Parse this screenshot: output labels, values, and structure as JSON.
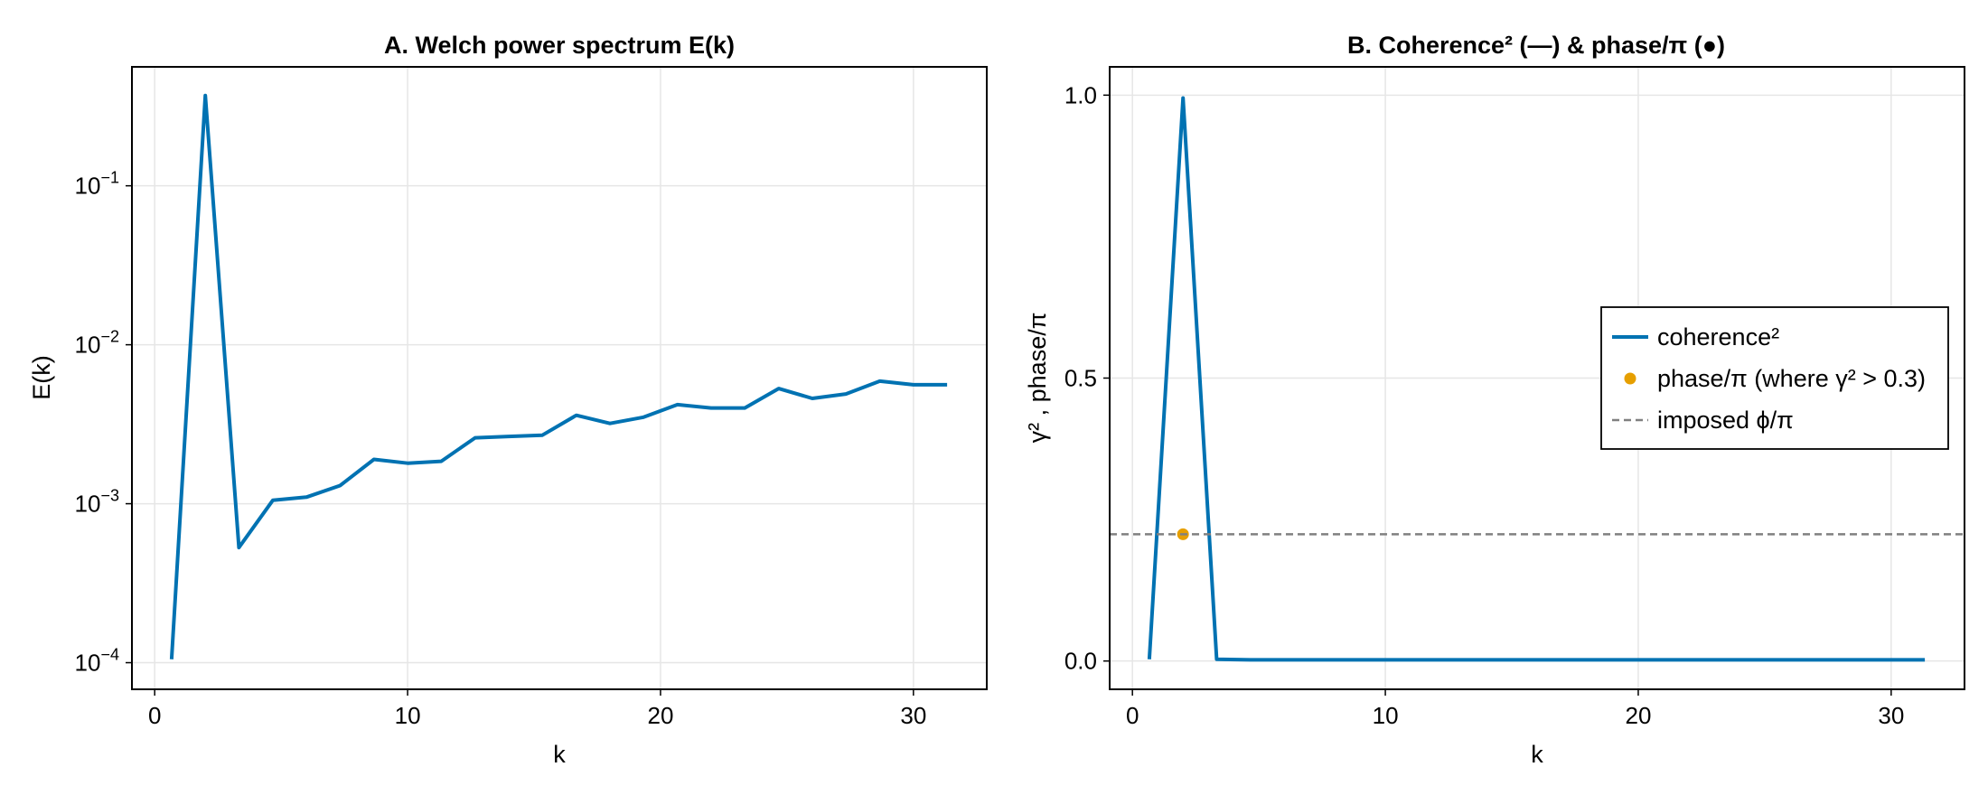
{
  "chart_data": [
    {
      "type": "line",
      "title": "A. Welch power spectrum E(k)",
      "xlabel": "k",
      "ylabel": "E(k)",
      "yscale": "log",
      "xlim": [
        -0.9,
        32.9
      ],
      "ylim": [
        6.8e-05,
        0.56
      ],
      "xticks": [
        0,
        10,
        20,
        30
      ],
      "yticks": [
        0.0001,
        0.001,
        0.01,
        0.1
      ],
      "ytick_labels": [
        {
          "base": "10",
          "exp": "−4"
        },
        {
          "base": "10",
          "exp": "−3"
        },
        {
          "base": "10",
          "exp": "−2"
        },
        {
          "base": "10",
          "exp": "−1"
        }
      ],
      "grid": true,
      "series": [
        {
          "color": "#0072b2",
          "x": [
            0.67,
            2.0,
            3.33,
            4.67,
            6.0,
            7.33,
            8.67,
            10.0,
            11.33,
            12.67,
            14.0,
            15.33,
            16.67,
            18.0,
            19.33,
            20.67,
            22.0,
            23.33,
            24.67,
            26.0,
            27.33,
            28.67,
            30.0,
            31.33
          ],
          "y": [
            0.000105,
            0.37,
            0.00053,
            0.00105,
            0.0011,
            0.0013,
            0.0019,
            0.0018,
            0.00185,
            0.0026,
            0.00265,
            0.0027,
            0.0036,
            0.0032,
            0.0035,
            0.0042,
            0.004,
            0.004,
            0.0053,
            0.0046,
            0.0049,
            0.0059,
            0.0056,
            0.0056
          ]
        }
      ]
    },
    {
      "type": "line",
      "title": "B. Coherence² (—) & phase/π (●)",
      "xlabel": "k",
      "ylabel": "γ² ,  phase/π",
      "xlim": [
        -0.9,
        32.9
      ],
      "ylim": [
        -0.05,
        1.05
      ],
      "xticks": [
        0,
        10,
        20,
        30
      ],
      "yticks": [
        0.0,
        0.5,
        1.0
      ],
      "ytick_labels": [
        "0.0",
        "0.5",
        "1.0"
      ],
      "grid": true,
      "legend": "right",
      "series": [
        {
          "name": "coherence²",
          "kind": "line",
          "color": "#0072b2",
          "x": [
            0.67,
            2.0,
            3.33,
            4.67,
            6.0,
            7.33,
            8.67,
            10.0,
            11.33,
            12.67,
            14.0,
            15.33,
            16.67,
            18.0,
            19.33,
            20.67,
            22.0,
            23.33,
            24.67,
            26.0,
            27.33,
            28.67,
            30.0,
            31.33
          ],
          "y": [
            0.003,
            0.995,
            0.003,
            0.002,
            0.002,
            0.002,
            0.002,
            0.002,
            0.002,
            0.002,
            0.002,
            0.002,
            0.002,
            0.002,
            0.002,
            0.002,
            0.002,
            0.002,
            0.002,
            0.002,
            0.002,
            0.002,
            0.002,
            0.002
          ]
        },
        {
          "name": "phase/π (where γ² > 0.3)",
          "kind": "scatter",
          "color": "#e69f00",
          "x": [
            2.0
          ],
          "y": [
            0.224
          ]
        },
        {
          "name": "imposed ϕ/π",
          "kind": "hline",
          "color": "#808080",
          "y": 0.224
        }
      ]
    }
  ]
}
